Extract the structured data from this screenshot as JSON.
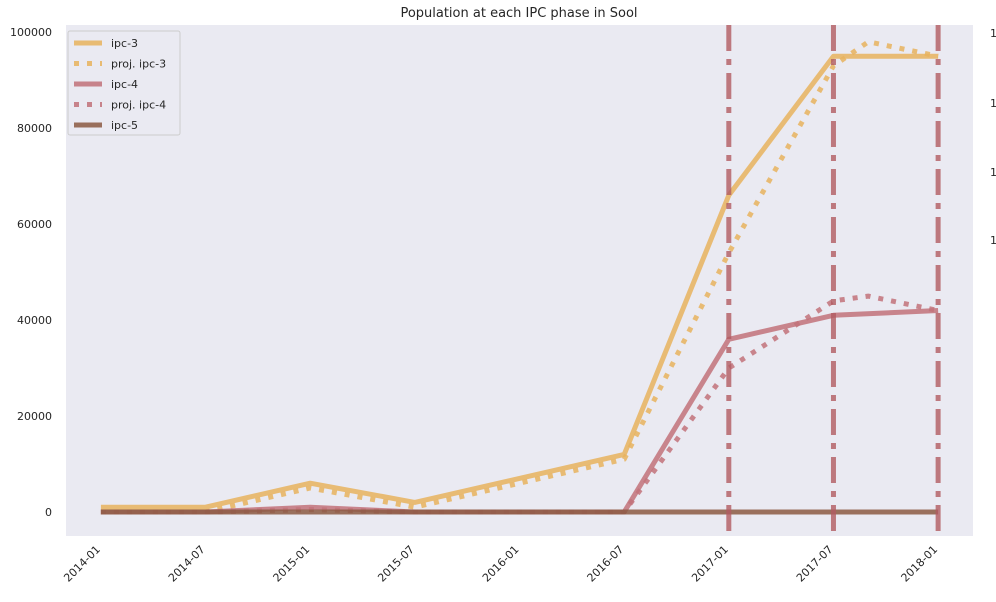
{
  "chart_data": {
    "type": "line",
    "title": "Population at each IPC phase in Sool",
    "xlabel": "",
    "ylabel": "",
    "x_ticks": [
      "2014-01",
      "2014-07",
      "2015-01",
      "2015-07",
      "2016-01",
      "2016-07",
      "2017-01",
      "2017-07",
      "2018-01"
    ],
    "x_range": [
      "2013-11",
      "2018-03"
    ],
    "y_ticks": [
      0,
      20000,
      40000,
      60000,
      80000,
      100000
    ],
    "ylim": [
      -5000,
      101500
    ],
    "grid": false,
    "legend_position": "top-left",
    "series": [
      {
        "name": "ipc-3",
        "style": "solid",
        "color": "#E8B35E",
        "points": [
          [
            "2014-01",
            1000
          ],
          [
            "2014-07",
            1000
          ],
          [
            "2015-01",
            6000
          ],
          [
            "2015-07",
            2000
          ],
          [
            "2016-07",
            12000
          ],
          [
            "2017-01",
            66000
          ],
          [
            "2017-07",
            95000
          ],
          [
            "2018-01",
            95000
          ]
        ]
      },
      {
        "name": "proj. ipc-3",
        "style": "dotted",
        "color": "#E8B35E",
        "points": [
          [
            "2014-01",
            0
          ],
          [
            "2014-07",
            0
          ],
          [
            "2015-01",
            5000
          ],
          [
            "2015-07",
            1000
          ],
          [
            "2016-07",
            11000
          ],
          [
            "2017-01",
            54000
          ],
          [
            "2017-07",
            93000
          ],
          [
            "2017-09",
            98000
          ],
          [
            "2018-01",
            95000
          ]
        ]
      },
      {
        "name": "ipc-4",
        "style": "solid",
        "color": "#C2727A",
        "points": [
          [
            "2014-01",
            0
          ],
          [
            "2014-07",
            0
          ],
          [
            "2015-01",
            1000
          ],
          [
            "2015-07",
            0
          ],
          [
            "2016-07",
            0
          ],
          [
            "2017-01",
            36000
          ],
          [
            "2017-07",
            41000
          ],
          [
            "2018-01",
            42000
          ]
        ]
      },
      {
        "name": "proj. ipc-4",
        "style": "dotted",
        "color": "#C2727A",
        "points": [
          [
            "2014-01",
            0
          ],
          [
            "2014-07",
            0
          ],
          [
            "2015-01",
            500
          ],
          [
            "2015-07",
            0
          ],
          [
            "2016-07",
            0
          ],
          [
            "2017-01",
            30000
          ],
          [
            "2017-07",
            44000
          ],
          [
            "2017-09",
            45000
          ],
          [
            "2018-01",
            42000
          ]
        ]
      },
      {
        "name": "ipc-5",
        "style": "solid",
        "color": "#8C5A43",
        "points": [
          [
            "2014-01",
            0
          ],
          [
            "2014-07",
            0
          ],
          [
            "2015-01",
            0
          ],
          [
            "2015-07",
            0
          ],
          [
            "2016-07",
            0
          ],
          [
            "2017-01",
            0
          ],
          [
            "2017-07",
            0
          ],
          [
            "2018-01",
            0
          ]
        ]
      }
    ],
    "vertical_markers": {
      "style": "dashdot",
      "color": "#B25C62",
      "x": [
        "2017-01",
        "2017-07",
        "2018-01"
      ]
    },
    "right_edge_ticks": [
      "1",
      "1",
      "1",
      "1"
    ]
  }
}
